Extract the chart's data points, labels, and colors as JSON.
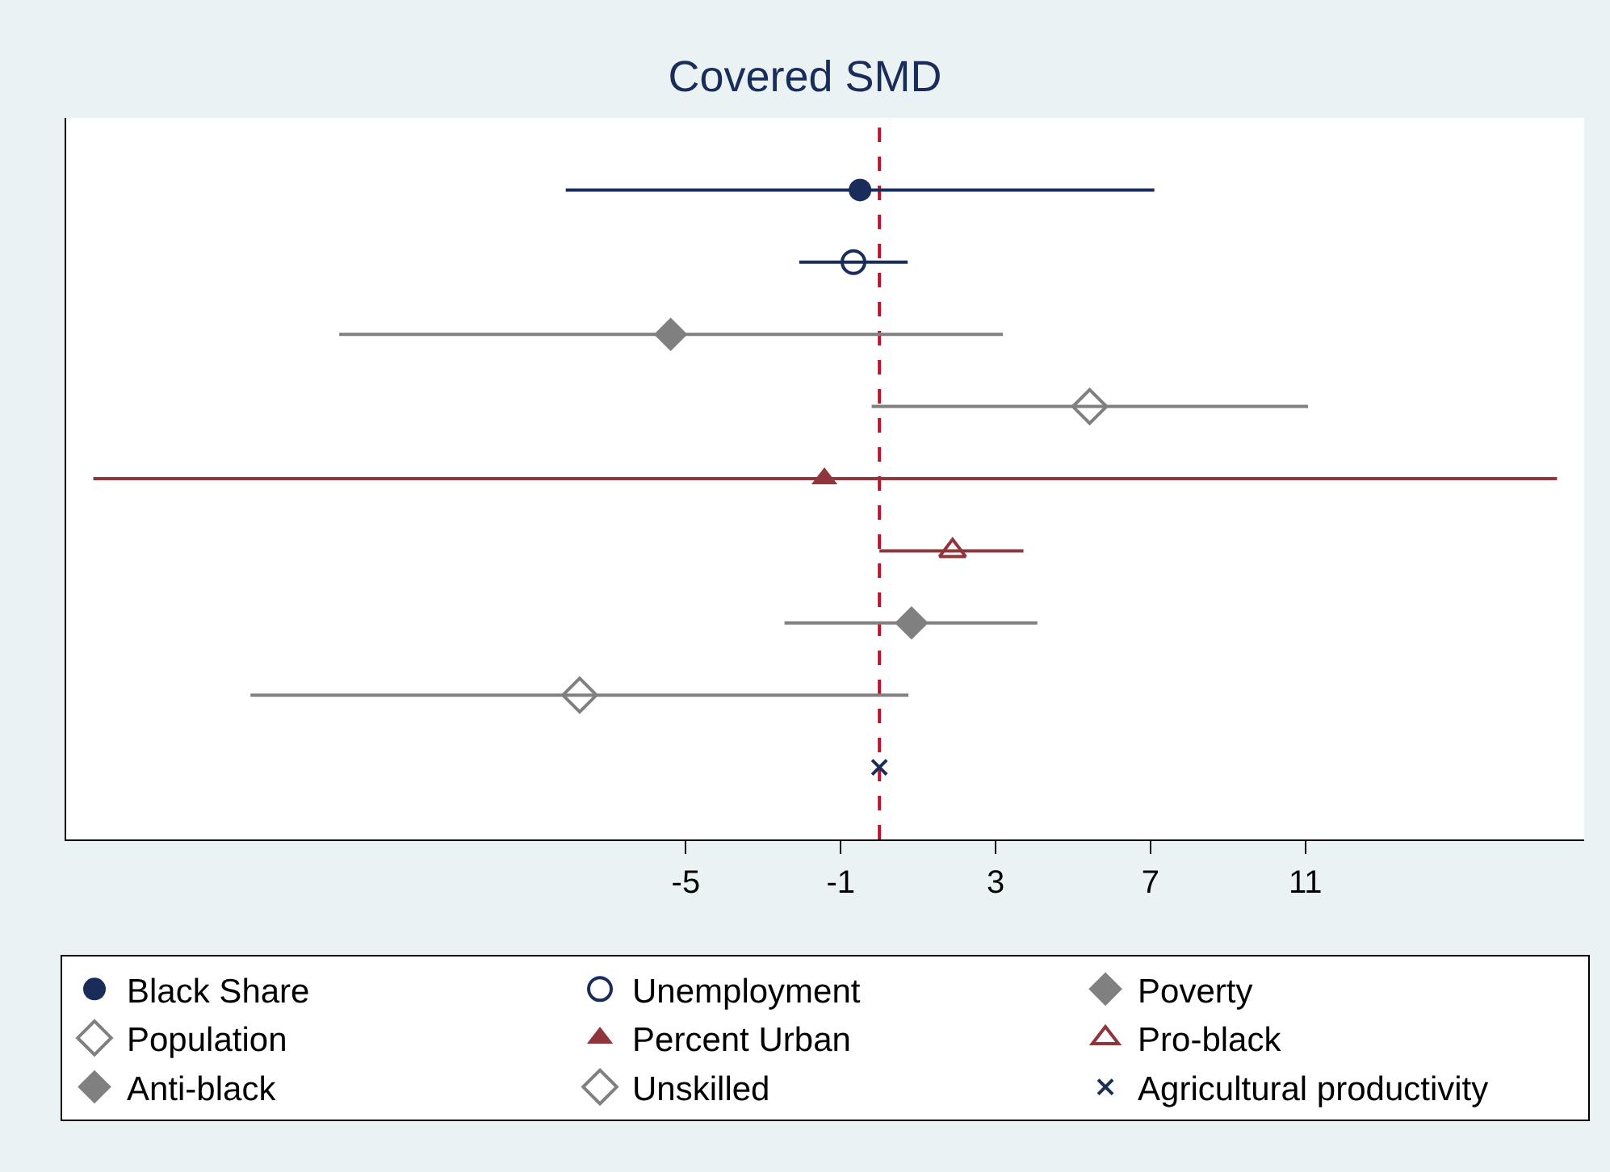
{
  "chart_data": {
    "type": "scatter",
    "title": "Covered SMD",
    "orientation": "horizontal",
    "categories": [
      null,
      null,
      null,
      null,
      null,
      null,
      null,
      null,
      null
    ],
    "xlim": [
      -21,
      18.2
    ],
    "xticks": [
      -5,
      -1,
      3,
      7,
      11
    ],
    "legend": "bottom",
    "tick_labels": "x",
    "ref_lines": [
      {
        "axis": "x",
        "value": 0,
        "color": "#c8102e",
        "line_style": "dashed"
      }
    ],
    "series": [
      {
        "name": "Black Share",
        "color": "#1a2d5a",
        "marker": "circle",
        "values": [
          -0.5,
          null,
          null,
          null,
          null,
          null,
          null,
          null,
          null
        ],
        "errors": [
          [
            -8.1,
            7.1
          ],
          null,
          null,
          null,
          null,
          null,
          null,
          null,
          null
        ]
      },
      {
        "name": "Unemployment",
        "color": "#1a2d5a",
        "marker": "circle",
        "values": [
          null,
          -0.67,
          null,
          null,
          null,
          null,
          null,
          null,
          null
        ],
        "errors": [
          null,
          [
            -2.07,
            0.73
          ],
          null,
          null,
          null,
          null,
          null,
          null,
          null
        ]
      },
      {
        "name": "Poverty",
        "color": "#808080",
        "marker": "diamond",
        "values": [
          null,
          null,
          -5.39,
          null,
          null,
          null,
          null,
          null,
          null
        ],
        "errors": [
          null,
          null,
          [
            -13.95,
            3.19
          ],
          null,
          null,
          null,
          null,
          null,
          null
        ]
      },
      {
        "name": "Population",
        "color": "#808080",
        "marker": "diamond",
        "values": [
          null,
          null,
          null,
          5.43,
          null,
          null,
          null,
          null,
          null
        ],
        "errors": [
          null,
          null,
          null,
          [
            -0.2,
            11.07
          ],
          null,
          null,
          null,
          null,
          null
        ]
      },
      {
        "name": "Percent Urban",
        "color": "#90353b",
        "marker": "triangle",
        "values": [
          null,
          null,
          null,
          null,
          -1.42,
          null,
          null,
          null,
          null
        ],
        "errors": [
          null,
          null,
          null,
          null,
          [
            -20.3,
            17.5
          ],
          null,
          null,
          null,
          null
        ]
      },
      {
        "name": "Pro-black",
        "color": "#90353b",
        "marker": "triangle",
        "values": [
          null,
          null,
          null,
          null,
          null,
          1.89,
          null,
          null,
          null
        ],
        "errors": [
          null,
          null,
          null,
          null,
          null,
          [
            0,
            3.72
          ],
          null,
          null,
          null
        ]
      },
      {
        "name": "Anti-black",
        "color": "#808080",
        "marker": "diamond",
        "values": [
          null,
          null,
          null,
          null,
          null,
          null,
          0.83,
          null,
          null
        ],
        "errors": [
          null,
          null,
          null,
          null,
          null,
          null,
          [
            -2.45,
            4.08
          ],
          null,
          null
        ]
      },
      {
        "name": "Unskilled",
        "color": "#808080",
        "marker": "diamond",
        "values": [
          null,
          null,
          null,
          null,
          null,
          null,
          null,
          -7.74,
          null
        ],
        "errors": [
          null,
          null,
          null,
          null,
          null,
          null,
          null,
          [
            -16.24,
            0.75
          ],
          null
        ]
      },
      {
        "name": "Agricultural productivity",
        "color": "#1a2d5a",
        "marker": "cross",
        "values": [
          null,
          null,
          null,
          null,
          null,
          null,
          null,
          null,
          0
        ],
        "errors": [
          null,
          null,
          null,
          null,
          null,
          null,
          null,
          null,
          null
        ]
      }
    ]
  }
}
